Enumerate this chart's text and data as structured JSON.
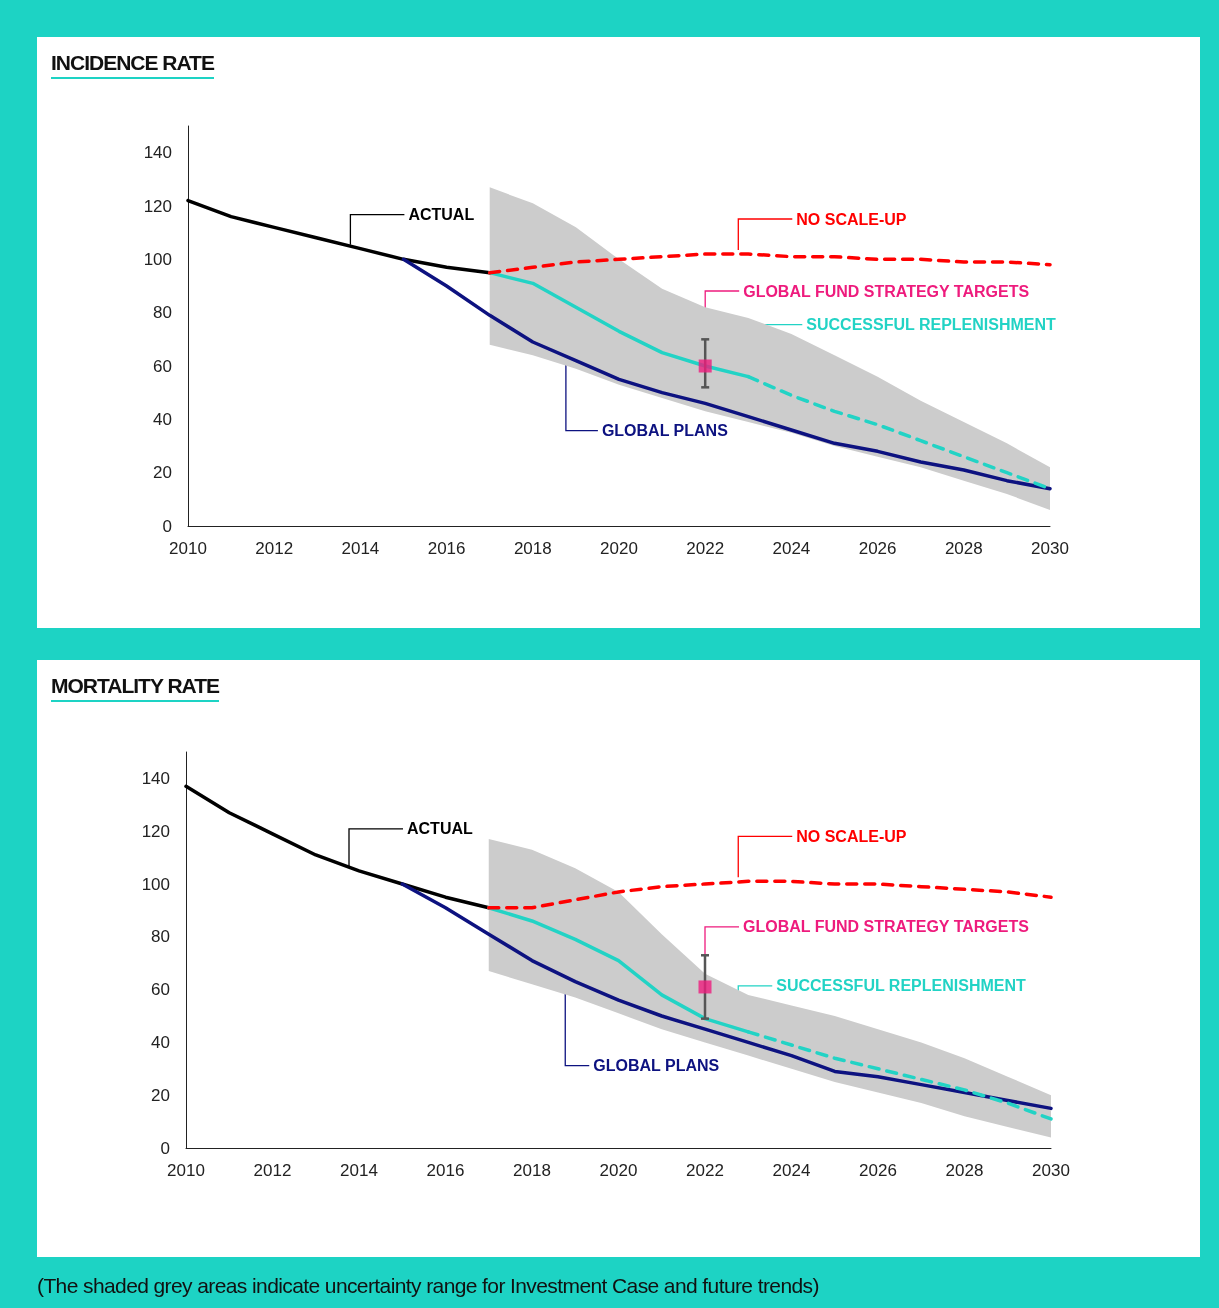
{
  "chart_data": [
    {
      "type": "line",
      "title": "INCIDENCE RATE",
      "xlim": [
        2010,
        2030
      ],
      "xticks": [
        2010,
        2012,
        2014,
        2016,
        2018,
        2020,
        2022,
        2024,
        2026,
        2028,
        2030
      ],
      "ylim": [
        0,
        150
      ],
      "yticks": [
        0,
        20,
        40,
        60,
        80,
        100,
        120,
        140
      ],
      "grid": false,
      "legend": false,
      "series": [
        {
          "name": "ACTUAL",
          "color": "#000000",
          "x": [
            2010,
            2011,
            2012,
            2013,
            2014,
            2015,
            2016,
            2017
          ],
          "values": [
            122,
            116,
            112,
            108,
            104,
            100,
            97,
            95
          ]
        },
        {
          "name": "GLOBAL PLANS",
          "color": "#0d1280",
          "x": [
            2015,
            2016,
            2017,
            2018,
            2019,
            2020,
            2021,
            2022,
            2023,
            2024,
            2025,
            2026,
            2027,
            2028,
            2029,
            2030
          ],
          "values": [
            100,
            90,
            79,
            69,
            62,
            55,
            50,
            46,
            41,
            36,
            31,
            28,
            24,
            21,
            17,
            14
          ],
          "lower": [
            null,
            null,
            68,
            64,
            59,
            53,
            48,
            43,
            39,
            35,
            30,
            26,
            22,
            17,
            12,
            6
          ],
          "upper": [
            null,
            null,
            127,
            121,
            112,
            100,
            89,
            82,
            78,
            72,
            64,
            56,
            47,
            39,
            31,
            22
          ]
        },
        {
          "name": "SUCCESSFUL REPLENISHMENT",
          "color": "#22d3c5",
          "x": [
            2017,
            2018,
            2019,
            2020,
            2021,
            2022,
            2023
          ],
          "values": [
            95,
            91,
            82,
            73,
            65,
            60,
            56
          ]
        },
        {
          "color": "#22d3c5",
          "line_style": "dashed",
          "x": [
            2023,
            2024,
            2025,
            2026,
            2027,
            2028,
            2029,
            2030
          ],
          "values": [
            56,
            49,
            43,
            38,
            32,
            26,
            20,
            14
          ]
        },
        {
          "name": "NO SCALE-UP",
          "color": "#ff0000",
          "line_style": "dashed",
          "x": [
            2017,
            2018,
            2019,
            2020,
            2021,
            2022,
            2023,
            2024,
            2025,
            2026,
            2027,
            2028,
            2029,
            2030
          ],
          "values": [
            95,
            97,
            99,
            100,
            101,
            102,
            102,
            101,
            101,
            100,
            100,
            99,
            99,
            98
          ]
        },
        {
          "name": "GLOBAL FUND STRATEGY TARGETS",
          "type": "scatter",
          "marker": "square",
          "color": "#ee1b7d",
          "x": [
            2022
          ],
          "values": [
            60
          ],
          "errors": [
            [
              52,
              70
            ]
          ]
        }
      ]
    },
    {
      "type": "line",
      "title": "MORTALITY RATE",
      "xlim": [
        2010,
        2030
      ],
      "xticks": [
        2010,
        2012,
        2014,
        2016,
        2018,
        2020,
        2022,
        2024,
        2026,
        2028,
        2030
      ],
      "ylim": [
        0,
        150
      ],
      "yticks": [
        0,
        20,
        40,
        60,
        80,
        100,
        120,
        140
      ],
      "grid": false,
      "legend": false,
      "annotations": [
        "(The shaded grey areas indicate uncertainty range for Investment Case and future trends)"
      ],
      "series": [
        {
          "name": "ACTUAL",
          "color": "#000000",
          "x": [
            2010,
            2011,
            2012,
            2013,
            2014,
            2015,
            2016,
            2017
          ],
          "values": [
            137,
            127,
            119,
            111,
            105,
            100,
            95,
            91
          ]
        },
        {
          "name": "GLOBAL PLANS",
          "color": "#0d1280",
          "x": [
            2015,
            2016,
            2017,
            2018,
            2019,
            2020,
            2021,
            2022,
            2023,
            2024,
            2025,
            2026,
            2027,
            2028,
            2029,
            2030
          ],
          "values": [
            100,
            91,
            81,
            71,
            63,
            56,
            50,
            45,
            40,
            35,
            29,
            27,
            24,
            21,
            18,
            15
          ],
          "lower": [
            null,
            null,
            67,
            62,
            57,
            51,
            45,
            40,
            35,
            30,
            25,
            21,
            17,
            12,
            8,
            4
          ],
          "upper": [
            null,
            null,
            117,
            113,
            106,
            97,
            81,
            66,
            58,
            54,
            50,
            45,
            40,
            34,
            27,
            20
          ]
        },
        {
          "name": "SUCCESSFUL REPLENISHMENT",
          "color": "#22d3c5",
          "x": [
            2017,
            2018,
            2019,
            2020,
            2021,
            2022,
            2023
          ],
          "values": [
            91,
            86,
            79,
            71,
            58,
            49,
            44
          ]
        },
        {
          "color": "#22d3c5",
          "line_style": "dashed",
          "x": [
            2023,
            2024,
            2025,
            2026,
            2027,
            2028,
            2029,
            2030
          ],
          "values": [
            44,
            39,
            34,
            30,
            26,
            22,
            17,
            11
          ]
        },
        {
          "name": "NO SCALE-UP",
          "color": "#ff0000",
          "line_style": "dashed",
          "x": [
            2017,
            2018,
            2019,
            2020,
            2021,
            2022,
            2023,
            2024,
            2025,
            2026,
            2027,
            2028,
            2029,
            2030
          ],
          "values": [
            91,
            91,
            94,
            97,
            99,
            100,
            101,
            101,
            100,
            100,
            99,
            98,
            97,
            95
          ]
        },
        {
          "name": "GLOBAL FUND STRATEGY TARGETS",
          "type": "scatter",
          "marker": "square",
          "color": "#ee1b7d",
          "x": [
            2022
          ],
          "values": [
            61
          ],
          "errors": [
            [
              49,
              73
            ]
          ]
        }
      ]
    }
  ]
}
